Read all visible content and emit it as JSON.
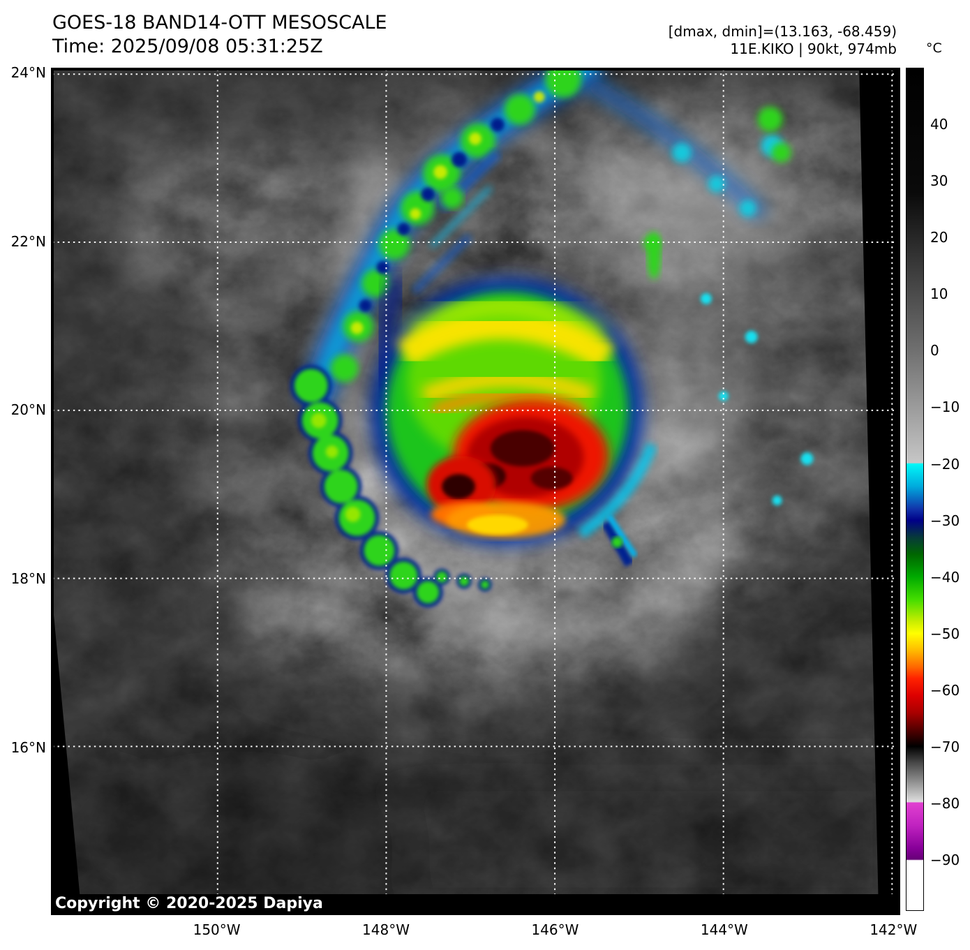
{
  "header": {
    "title": "GOES-18 BAND14-OTT MESOSCALE",
    "subtitle": "Time: 2025/09/08 05:31:25Z",
    "stats_line": "[dmax, dmin]=(13.163, -68.459)",
    "storm_line": "11E.KIKO | 90kt, 974mb"
  },
  "colorbar": {
    "unit": "°C",
    "ticks": [
      {
        "value": 40,
        "label": "40"
      },
      {
        "value": 30,
        "label": "30"
      },
      {
        "value": 20,
        "label": "20"
      },
      {
        "value": 10,
        "label": "10"
      },
      {
        "value": 0,
        "label": "0"
      },
      {
        "value": -10,
        "label": "−10"
      },
      {
        "value": -20,
        "label": "−20"
      },
      {
        "value": -30,
        "label": "−30"
      },
      {
        "value": -40,
        "label": "−40"
      },
      {
        "value": -50,
        "label": "−50"
      },
      {
        "value": -60,
        "label": "−60"
      },
      {
        "value": -70,
        "label": "−70"
      },
      {
        "value": -80,
        "label": "−80"
      },
      {
        "value": -90,
        "label": "−90"
      }
    ],
    "stops": [
      {
        "t": 50,
        "color": "#000000"
      },
      {
        "t": 28,
        "color": "#0a0a0a"
      },
      {
        "t": 0,
        "color": "#707070"
      },
      {
        "t": -19.8,
        "color": "#c6c6c6"
      },
      {
        "t": -20,
        "color": "#00f8f8"
      },
      {
        "t": -24,
        "color": "#00aadd"
      },
      {
        "t": -28,
        "color": "#1133aa"
      },
      {
        "t": -30,
        "color": "#000088"
      },
      {
        "t": -33,
        "color": "#073a3a"
      },
      {
        "t": -36,
        "color": "#006600"
      },
      {
        "t": -40,
        "color": "#00aa00"
      },
      {
        "t": -44,
        "color": "#44dd00"
      },
      {
        "t": -48,
        "color": "#ccee00"
      },
      {
        "t": -50,
        "color": "#ffff00"
      },
      {
        "t": -53,
        "color": "#ffbb00"
      },
      {
        "t": -56,
        "color": "#ff6600"
      },
      {
        "t": -58,
        "color": "#ff2200"
      },
      {
        "t": -61,
        "color": "#dd0000"
      },
      {
        "t": -64,
        "color": "#aa0000"
      },
      {
        "t": -67,
        "color": "#550000"
      },
      {
        "t": -70,
        "color": "#000000"
      },
      {
        "t": -73,
        "color": "#4a4a4a"
      },
      {
        "t": -76,
        "color": "#8a8a8a"
      },
      {
        "t": -79.8,
        "color": "#dedede"
      },
      {
        "t": -80,
        "color": "#e040d0"
      },
      {
        "t": -84,
        "color": "#c022c0"
      },
      {
        "t": -88,
        "color": "#880099"
      },
      {
        "t": -90,
        "color": "#660077"
      },
      {
        "t": -90.2,
        "color": "#ffffff"
      },
      {
        "t": -99,
        "color": "#ffffff"
      }
    ]
  },
  "map": {
    "lat_ticks": [
      {
        "value": 24,
        "label": "24°N"
      },
      {
        "value": 22,
        "label": "22°N"
      },
      {
        "value": 20,
        "label": "20°N"
      },
      {
        "value": 18,
        "label": "18°N"
      },
      {
        "value": 16,
        "label": "16°N"
      }
    ],
    "lon_ticks": [
      {
        "value": -150,
        "label": "150°W"
      },
      {
        "value": -148,
        "label": "148°W"
      },
      {
        "value": -146,
        "label": "146°W"
      },
      {
        "value": -144,
        "label": "144°W"
      },
      {
        "value": -142,
        "label": "142°W"
      }
    ],
    "copyright": "Copyright © 2020-2025 Dapiya"
  }
}
